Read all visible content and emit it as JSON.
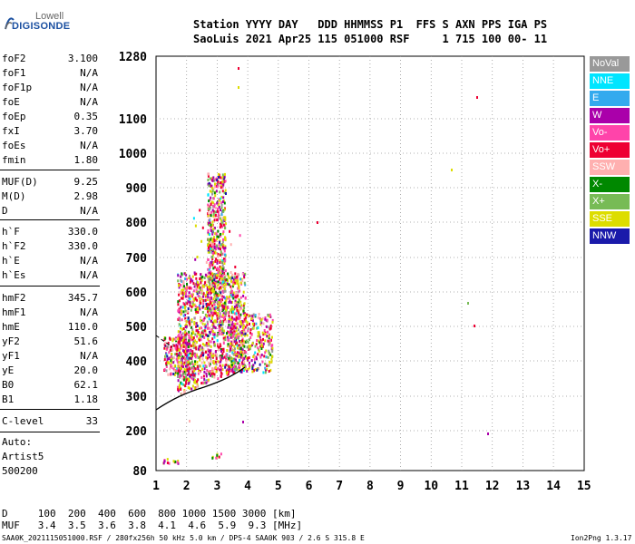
{
  "logo": {
    "line1": "Lowell",
    "line2": "DIGISONDE"
  },
  "header": {
    "labels": "Station YYYY DAY   DDD HHMMSS P1  FFS S AXN PPS IGA PS",
    "values": "SaoLuis 2021 Apr25 115 051000 RSF     1 715 100 00- 11"
  },
  "params": [
    {
      "k": "foF2",
      "v": "3.100"
    },
    {
      "k": "foF1",
      "v": "N/A"
    },
    {
      "k": "foF1p",
      "v": "N/A"
    },
    {
      "k": "foE",
      "v": "N/A"
    },
    {
      "k": "foEp",
      "v": "0.35"
    },
    {
      "k": "fxI",
      "v": "3.70"
    },
    {
      "k": "foEs",
      "v": "N/A"
    },
    {
      "k": "fmin",
      "v": "1.80"
    },
    {
      "k": "MUF(D)",
      "v": "9.25"
    },
    {
      "k": "M(D)",
      "v": "2.98"
    },
    {
      "k": "D",
      "v": "N/A"
    },
    {
      "k": "h`F",
      "v": "330.0"
    },
    {
      "k": "h`F2",
      "v": "330.0"
    },
    {
      "k": "h`E",
      "v": "N/A"
    },
    {
      "k": "h`Es",
      "v": "N/A"
    },
    {
      "k": "hmF2",
      "v": "345.7"
    },
    {
      "k": "hmF1",
      "v": "N/A"
    },
    {
      "k": "hmE",
      "v": "110.0"
    },
    {
      "k": "yF2",
      "v": "51.6"
    },
    {
      "k": "yF1",
      "v": "N/A"
    },
    {
      "k": "yE",
      "v": "20.0"
    },
    {
      "k": "B0",
      "v": "62.1"
    },
    {
      "k": "B1",
      "v": "1.18"
    },
    {
      "k": "C-level",
      "v": "33"
    }
  ],
  "auto": {
    "l1": "Auto:",
    "l2": "Artist5",
    "l3": "500200"
  },
  "legend": [
    {
      "label": "NoVal",
      "color": "#999999"
    },
    {
      "label": "NNE",
      "color": "#00e5ff"
    },
    {
      "label": "E",
      "color": "#33aaee"
    },
    {
      "label": "W",
      "color": "#aa00aa"
    },
    {
      "label": "Vo-",
      "color": "#ff44aa"
    },
    {
      "label": "Vo+",
      "color": "#ee0033"
    },
    {
      "label": "SSW",
      "color": "#ffb0b0"
    },
    {
      "label": "X-",
      "color": "#008800"
    },
    {
      "label": "X+",
      "color": "#77bb55"
    },
    {
      "label": "SSE",
      "color": "#dddd00"
    },
    {
      "label": "NNW",
      "color": "#1a1aaa"
    }
  ],
  "chart_data": {
    "type": "scatter",
    "x_ticks": [
      "1",
      "2",
      "3",
      "4",
      "5",
      "6",
      "7",
      "8",
      "9",
      "10",
      "11",
      "12",
      "13",
      "14",
      "15"
    ],
    "y_ticks": [
      "80",
      "200",
      "300",
      "400",
      "500",
      "600",
      "700",
      "800",
      "900",
      "1000",
      "1100",
      "1280"
    ],
    "xlim": [
      1,
      15
    ],
    "y_axis_labels_values": [
      80,
      200,
      300,
      400,
      500,
      600,
      700,
      800,
      900,
      1000,
      1100,
      1280
    ]
  },
  "footer": {
    "d_line": "D     100  200  400  600  800 1000 1500 3000 [km]",
    "muf_line": "MUF   3.4  3.5  3.6  3.8  4.1  4.6  5.9  9.3 [MHz]",
    "file_line": "SAA0K_2021115051000.RSF / 280fx256h 50 kHz 5.0 km / DPS-4 SAA0K 903 / 2.6 S 315.8 E",
    "version": "Ion2Png 1.3.17"
  }
}
